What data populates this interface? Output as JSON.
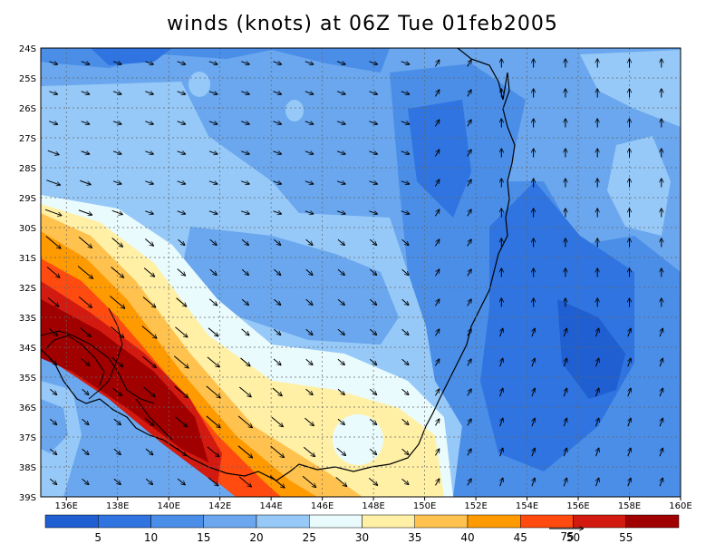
{
  "title": "winds (knots) at 06Z Tue 01feb2005",
  "chart_data": {
    "type": "heatmap",
    "title": "winds (knots) at 06Z Tue 01feb2005",
    "x_ticks": [
      "136E",
      "138E",
      "140E",
      "142E",
      "144E",
      "146E",
      "148E",
      "150E",
      "152E",
      "154E",
      "156E",
      "158E",
      "160E"
    ],
    "y_ticks": [
      "24S",
      "25S",
      "26S",
      "27S",
      "28S",
      "29S",
      "30S",
      "31S",
      "32S",
      "33S",
      "34S",
      "35S",
      "36S",
      "37S",
      "38S",
      "39S"
    ],
    "lon_range": [
      135.0,
      160.0
    ],
    "lat_range": [
      -39.0,
      -24.0
    ],
    "colorbar": {
      "colors": [
        "#1f5fd1",
        "#2f74e0",
        "#4a8ee8",
        "#6aa7ee",
        "#96c9f8",
        "#e9fbfc",
        "#fff0a6",
        "#ffc24f",
        "#ff9a00",
        "#ff4a10",
        "#d21a10",
        "#a00000"
      ],
      "labels": [
        "5",
        "10",
        "15",
        "20",
        "25",
        "30",
        "35",
        "40",
        "45",
        "50",
        "55"
      ]
    },
    "vector_reference": {
      "label": "75"
    },
    "grid": true
  }
}
